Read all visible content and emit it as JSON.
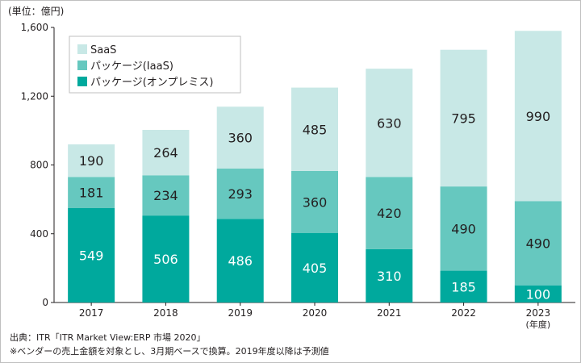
{
  "chart_data": {
    "type": "bar",
    "stacked": true,
    "unit_label": "(単位：億円)",
    "categories": [
      "2017",
      "2018",
      "2019",
      "2020",
      "2021",
      "2022",
      "2023"
    ],
    "x_suffix_label": "(年度)",
    "ylim": [
      0,
      1600
    ],
    "yticks": [
      0,
      400,
      800,
      1200,
      1600
    ],
    "ytick_labels": [
      "0",
      "400",
      "800",
      "1,200",
      "1,600"
    ],
    "legend_position": "top-left",
    "series": [
      {
        "name": "パッケージ(オンプレミス)",
        "color": "#00a99d",
        "values": [
          549,
          506,
          486,
          405,
          310,
          185,
          100
        ]
      },
      {
        "name": "パッケージ(IaaS)",
        "color": "#66c8bf",
        "values": [
          181,
          234,
          293,
          360,
          420,
          490,
          490
        ]
      },
      {
        "name": "SaaS",
        "color": "#c8e8e6",
        "values": [
          190,
          264,
          360,
          485,
          630,
          795,
          990
        ]
      }
    ]
  },
  "source": "出典：ITR「ITR Market View:ERP 市場 2020」",
  "note": "※ベンダーの売上金額を対象とし、3月期ベースで換算。2019年度以降は予測値"
}
